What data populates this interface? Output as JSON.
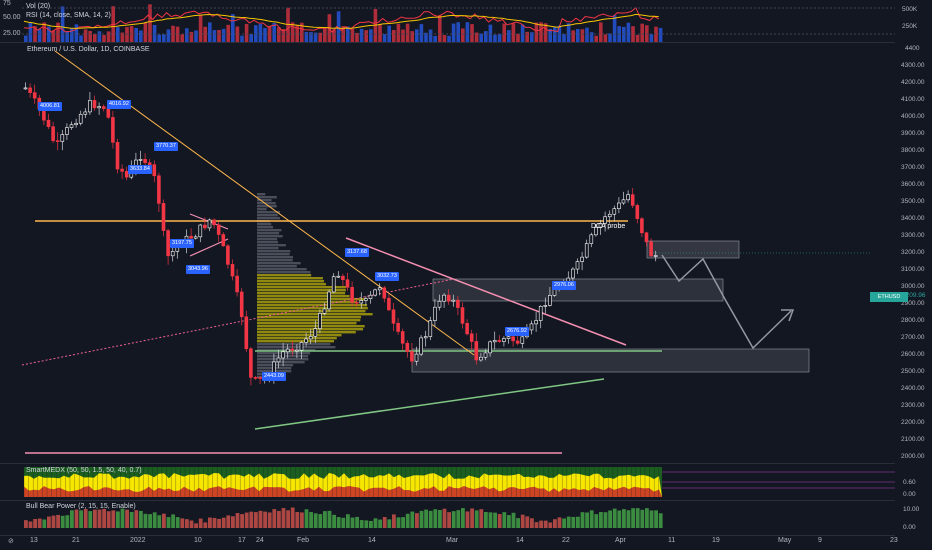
{
  "top_panel": {
    "vol_label": "Vol (20)",
    "rsi_label": "RSI (14, close, SMA, 14, 2)",
    "left_levels": [
      "75",
      "50.00",
      "25.00"
    ],
    "right_levels": [
      "500K",
      "250K"
    ]
  },
  "main_chart": {
    "symbol_title": "Ethereum / U.S. Dollar, 1D, COINBASE",
    "price_axis": [
      "4400",
      "4300.00",
      "4200.00",
      "4100.00",
      "4000.00",
      "3900.00",
      "3800.00",
      "3700.00",
      "3600.00",
      "3500.00",
      "3400.00",
      "3300.00",
      "3200.00",
      "3100.00",
      "3000.00",
      "2900.00",
      "2800.00",
      "2700.00",
      "2600.00",
      "2500.00",
      "2400.00",
      "2300.00",
      "2200.00",
      "2100.00",
      "2000.00"
    ],
    "symbol_badge": "ETHUSD",
    "last_price": "3209.96",
    "price_tags": [
      {
        "label": "4006.81"
      },
      {
        "label": "4016.92"
      },
      {
        "label": "3770.37"
      },
      {
        "label": "3633.84"
      },
      {
        "label": "3197.75"
      },
      {
        "label": "3043.96"
      },
      {
        "label": "3137.68"
      },
      {
        "label": "3032.73"
      },
      {
        "label": "2976.06"
      },
      {
        "label": "2676.92"
      },
      {
        "label": "2443.09"
      }
    ],
    "annotation": "DCA probe"
  },
  "smart_panel": {
    "label": "SmartMEDX (50, 50, 1.5, 50, 40, 0.7)",
    "levels": [
      "0.60",
      "0.00"
    ]
  },
  "bbp_panel": {
    "label": "Bull Bear Power (2, 15, 15, Enable)",
    "levels": [
      "10.00",
      "0.00"
    ]
  },
  "time_axis": [
    "13",
    "21",
    "2022",
    "10",
    "17",
    "24",
    "Feb",
    "14",
    "Mar",
    "14",
    "22",
    "Apr",
    "11",
    "19",
    "May",
    "9",
    "23"
  ]
}
